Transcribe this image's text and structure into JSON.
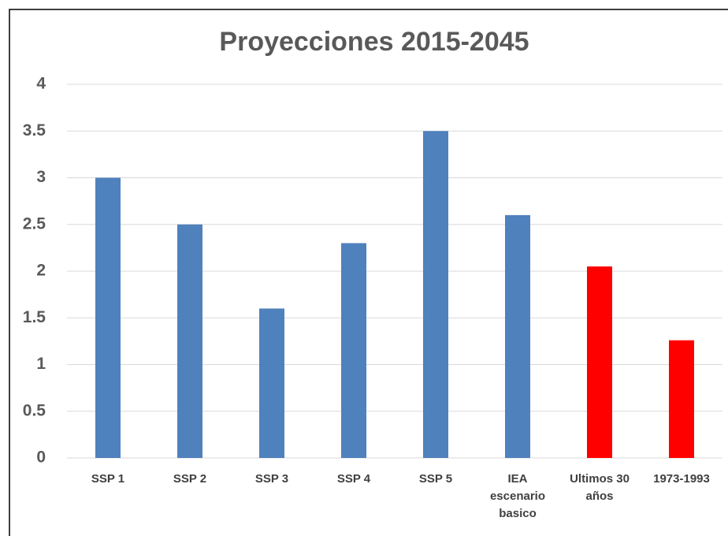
{
  "chart_data": {
    "type": "bar",
    "title": "Proyecciones 2015-2045",
    "categories": [
      "SSP 1",
      "SSP 2",
      "SSP 3",
      "SSP 4",
      "SSP 5",
      "IEA escenario basico",
      "Ultimos 30 años",
      "1973-1993"
    ],
    "values": [
      3,
      2.5,
      1.6,
      2.3,
      3.5,
      2.6,
      2.05,
      1.26
    ],
    "colors": [
      "#4f81bd",
      "#4f81bd",
      "#4f81bd",
      "#4f81bd",
      "#4f81bd",
      "#4f81bd",
      "#ff0000",
      "#ff0000"
    ],
    "ylim": [
      0,
      4
    ],
    "yticks": [
      0,
      0.5,
      1,
      1.5,
      2,
      2.5,
      3,
      3.5,
      4
    ],
    "grid": true
  }
}
